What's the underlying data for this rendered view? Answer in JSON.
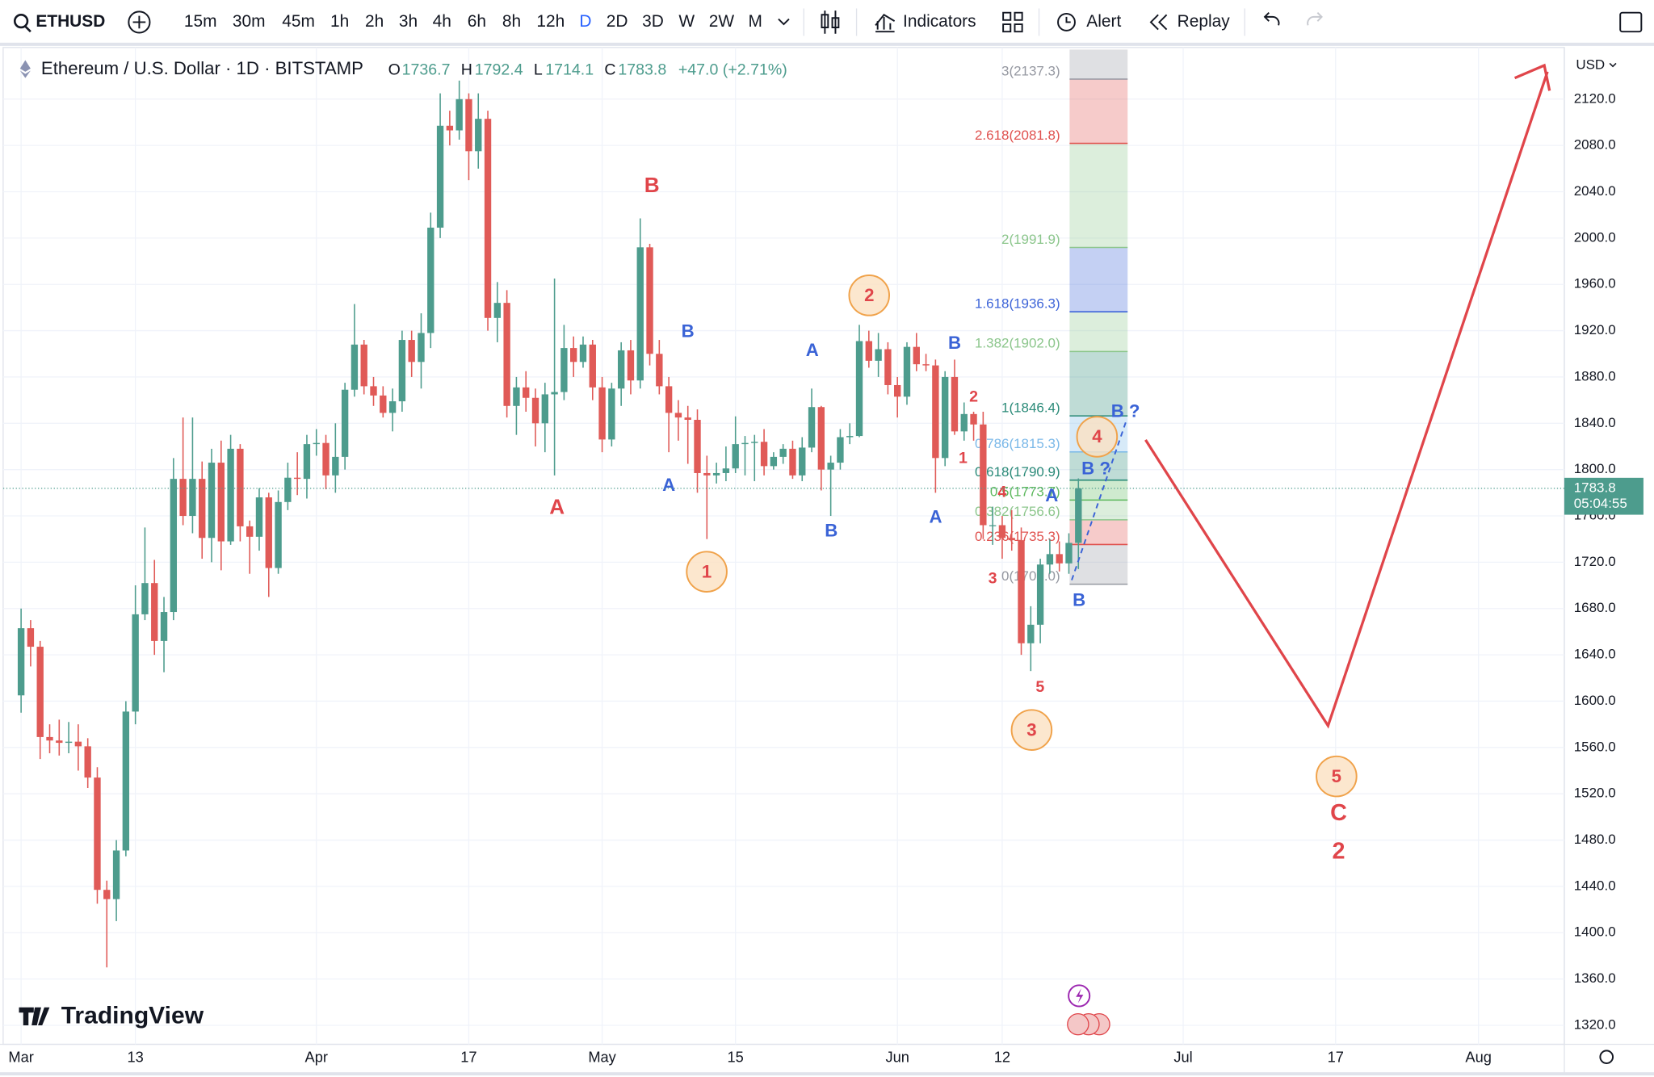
{
  "toolbar": {
    "symbol": "ETHUSD",
    "intervals": [
      "15m",
      "30m",
      "45m",
      "1h",
      "2h",
      "3h",
      "4h",
      "6h",
      "8h",
      "12h",
      "D",
      "2D",
      "3D",
      "W",
      "2W",
      "M"
    ],
    "active_interval": 10,
    "indicators": "Indicators",
    "alert": "Alert",
    "replay": "Replay"
  },
  "legend": {
    "title": "Ethereum / U.S. Dollar · 1D · BITSTAMP",
    "o": "O",
    "h": "H",
    "l": "L",
    "c": "C",
    "change": "+47.0 (+2.71%)"
  },
  "price_tag": {
    "timer": "05:04:55"
  },
  "currency": "USD",
  "logo": "TradingView",
  "chart_data": {
    "type": "candlestick",
    "up_color": "#4d9c8d",
    "down_color": "#e05a57",
    "grid": true,
    "x": [
      "03-01",
      "03-02",
      "03-03",
      "03-04",
      "03-05",
      "03-06",
      "03-07",
      "03-08",
      "03-09",
      "03-10",
      "03-11",
      "03-12",
      "03-13",
      "03-14",
      "03-15",
      "03-16",
      "03-17",
      "03-18",
      "03-19",
      "03-20",
      "03-21",
      "03-22",
      "03-23",
      "03-24",
      "03-25",
      "03-26",
      "03-27",
      "03-28",
      "03-29",
      "03-30",
      "03-31",
      "04-01",
      "04-02",
      "04-03",
      "04-04",
      "04-05",
      "04-06",
      "04-07",
      "04-08",
      "04-09",
      "04-10",
      "04-11",
      "04-12",
      "04-13",
      "04-14",
      "04-15",
      "04-16",
      "04-17",
      "04-18",
      "04-19",
      "04-20",
      "04-21",
      "04-22",
      "04-23",
      "04-24",
      "04-25",
      "04-26",
      "04-27",
      "04-28",
      "04-29",
      "04-30",
      "05-01",
      "05-02",
      "05-03",
      "05-04",
      "05-05",
      "05-06",
      "05-07",
      "05-08",
      "05-09",
      "05-10",
      "05-11",
      "05-12",
      "05-13",
      "05-14",
      "05-15",
      "05-16",
      "05-17",
      "05-18",
      "05-19",
      "05-20",
      "05-21",
      "05-22",
      "05-23",
      "05-24",
      "05-25",
      "05-26",
      "05-27",
      "05-28",
      "05-29",
      "05-30",
      "05-31",
      "06-01",
      "06-02",
      "06-03",
      "06-04",
      "06-05",
      "06-06",
      "06-07",
      "06-08",
      "06-09",
      "06-10",
      "06-11",
      "06-12",
      "06-13",
      "06-14",
      "06-15",
      "06-16",
      "06-17",
      "06-18",
      "06-19",
      "06-20"
    ],
    "open": [
      1605,
      1663,
      1647,
      1569,
      1566,
      1564,
      1565,
      1561,
      1534,
      1437,
      1429,
      1471,
      1591,
      1675,
      1702,
      1652,
      1677,
      1792,
      1760,
      1792,
      1741,
      1806,
      1738,
      1818,
      1751,
      1742,
      1776,
      1715,
      1772,
      1793,
      1792,
      1822,
      1823,
      1795,
      1811,
      1869,
      1908,
      1872,
      1864,
      1849,
      1859,
      1912,
      1893,
      1918,
      2009,
      2097,
      2093,
      2120,
      2075,
      2103,
      1931,
      1944,
      1855,
      1871,
      1862,
      1840,
      1865,
      1867,
      1905,
      1893,
      1908,
      1871,
      1826,
      1870,
      1903,
      1877,
      1992,
      1900,
      1872,
      1849,
      1845,
      1843,
      1797,
      1795,
      1797,
      1801,
      1822,
      1823,
      1824,
      1803,
      1811,
      1818,
      1795,
      1819,
      1854,
      1800,
      1806,
      1828,
      1829,
      1911,
      1894,
      1904,
      1873,
      1863,
      1906,
      1891,
      1890,
      1810,
      1880,
      1833,
      1848,
      1839,
      1752,
      1752,
      1741,
      1739,
      1650,
      1666,
      1718,
      1727,
      1719,
      1736.7
    ],
    "high": [
      1680,
      1670,
      1652,
      1580,
      1584,
      1582,
      1580,
      1568,
      1543,
      1445,
      1480,
      1600,
      1700,
      1750,
      1722,
      1690,
      1810,
      1845,
      1845,
      1807,
      1818,
      1825,
      1830,
      1822,
      1756,
      1784,
      1780,
      1782,
      1806,
      1815,
      1830,
      1835,
      1830,
      1840,
      1875,
      1943,
      1912,
      1880,
      1872,
      1870,
      1920,
      1920,
      1935,
      2022,
      2125,
      2110,
      2136,
      2125,
      2125,
      2110,
      1962,
      1955,
      1880,
      1885,
      1870,
      1875,
      1965,
      1925,
      1915,
      1915,
      1912,
      1880,
      1875,
      1910,
      1912,
      2017,
      1995,
      1912,
      1880,
      1860,
      1855,
      1852,
      1812,
      1806,
      1820,
      1846,
      1829,
      1830,
      1835,
      1815,
      1822,
      1825,
      1828,
      1870,
      1855,
      1812,
      1835,
      1840,
      1925,
      1920,
      1918,
      1910,
      1880,
      1910,
      1918,
      1900,
      1895,
      1885,
      1895,
      1858,
      1850,
      1850,
      1768,
      1760,
      1765,
      1750,
      1682,
      1723,
      1740,
      1738,
      1745,
      1792.4
    ],
    "low": [
      1590,
      1630,
      1550,
      1555,
      1553,
      1555,
      1540,
      1525,
      1425,
      1370,
      1410,
      1466,
      1580,
      1670,
      1640,
      1625,
      1670,
      1752,
      1745,
      1723,
      1720,
      1713,
      1735,
      1738,
      1710,
      1730,
      1690,
      1710,
      1765,
      1778,
      1775,
      1812,
      1783,
      1780,
      1800,
      1863,
      1865,
      1855,
      1845,
      1833,
      1850,
      1880,
      1870,
      1905,
      2000,
      2080,
      2085,
      2050,
      2060,
      1920,
      1910,
      1845,
      1830,
      1850,
      1820,
      1815,
      1795,
      1860,
      1880,
      1888,
      1860,
      1815,
      1820,
      1855,
      1865,
      1870,
      1890,
      1865,
      1815,
      1825,
      1805,
      1780,
      1740,
      1788,
      1790,
      1797,
      1795,
      1790,
      1795,
      1800,
      1805,
      1792,
      1790,
      1815,
      1782,
      1760,
      1800,
      1822,
      1828,
      1888,
      1880,
      1865,
      1845,
      1856,
      1885,
      1885,
      1780,
      1803,
      1830,
      1825,
      1825,
      1740,
      1735,
      1723,
      1730,
      1640,
      1626,
      1650,
      1710,
      1712,
      1710,
      1714.1
    ],
    "close": [
      1663,
      1647,
      1569,
      1566,
      1564,
      1565,
      1561,
      1534,
      1437,
      1429,
      1471,
      1591,
      1675,
      1702,
      1652,
      1677,
      1792,
      1760,
      1792,
      1741,
      1806,
      1738,
      1818,
      1751,
      1742,
      1776,
      1715,
      1772,
      1793,
      1792,
      1822,
      1823,
      1795,
      1811,
      1869,
      1908,
      1872,
      1864,
      1849,
      1859,
      1912,
      1893,
      1918,
      2009,
      2097,
      2093,
      2120,
      2075,
      2103,
      1931,
      1944,
      1855,
      1871,
      1862,
      1840,
      1865,
      1867,
      1905,
      1893,
      1908,
      1871,
      1826,
      1870,
      1903,
      1877,
      1992,
      1900,
      1872,
      1849,
      1845,
      1843,
      1797,
      1795,
      1797,
      1801,
      1822,
      1823,
      1824,
      1803,
      1811,
      1818,
      1795,
      1819,
      1854,
      1800,
      1806,
      1828,
      1829,
      1911,
      1894,
      1904,
      1873,
      1863,
      1906,
      1891,
      1890,
      1810,
      1880,
      1833,
      1848,
      1839,
      1752,
      1752,
      1741,
      1739,
      1650,
      1666,
      1718,
      1727,
      1719,
      1736.7,
      1783.8
    ],
    "ylim": [
      1303.6,
      2162.8
    ],
    "yticks": [
      {
        "value": 1320,
        "label": "1320.0"
      },
      {
        "value": 1360,
        "label": "1360.0"
      },
      {
        "value": 1400,
        "label": "1400.0"
      },
      {
        "value": 1440,
        "label": "1440.0"
      },
      {
        "value": 1480,
        "label": "1480.0"
      },
      {
        "value": 1520,
        "label": "1520.0"
      },
      {
        "value": 1560,
        "label": "1560.0"
      },
      {
        "value": 1600,
        "label": "1600.0"
      },
      {
        "value": 1640,
        "label": "1640.0"
      },
      {
        "value": 1680,
        "label": "1680.0"
      },
      {
        "value": 1720,
        "label": "1720.0"
      },
      {
        "value": 1760,
        "label": "1760.0"
      },
      {
        "value": 1800,
        "label": "1800.0"
      },
      {
        "value": 1840,
        "label": "1840.0"
      },
      {
        "value": 1880,
        "label": "1880.0"
      },
      {
        "value": 1920,
        "label": "1920.0"
      },
      {
        "value": 1960,
        "label": "1960.0"
      },
      {
        "value": 2000,
        "label": "2000.0"
      },
      {
        "value": 2040,
        "label": "2040.0"
      },
      {
        "value": 2080,
        "label": "2080.0"
      },
      {
        "value": 2120,
        "label": "2120.0"
      }
    ],
    "xticks": [
      {
        "value": "03-01",
        "label": "Mar"
      },
      {
        "value": "03-13",
        "label": "13"
      },
      {
        "value": "04-01",
        "label": "Apr"
      },
      {
        "value": "04-17",
        "label": "17"
      },
      {
        "value": "05-01",
        "label": "May"
      },
      {
        "value": "05-15",
        "label": "15"
      },
      {
        "value": "06-01",
        "label": "Jun"
      },
      {
        "value": "06-12",
        "label": "12"
      },
      {
        "value": "07-01",
        "label": "Jul"
      },
      {
        "value": "07-17",
        "label": "17"
      },
      {
        "value": "08-01",
        "label": "Aug"
      }
    ],
    "fib": [
      {
        "value": 2137.3,
        "label": "3(2137.3)",
        "color": "#9598a1"
      },
      {
        "value": 2081.8,
        "label": "2.618(2081.8)",
        "color": "#e0524f"
      },
      {
        "value": 1991.9,
        "label": "2(1991.9)",
        "color": "#8cc68c"
      },
      {
        "value": 1936.3,
        "label": "1.618(1936.3)",
        "color": "#3d64d8"
      },
      {
        "value": 1902.0,
        "label": "1.382(1902.0)",
        "color": "#8cc68c"
      },
      {
        "value": 1846.4,
        "label": "1(1846.4)",
        "color": "#2a8a78"
      },
      {
        "value": 1815.3,
        "label": "0.786(1815.3)",
        "color": "#7ab8e8"
      },
      {
        "value": 1790.9,
        "label": "0.618(1790.9)",
        "color": "#2a8a78"
      },
      {
        "value": 1773.7,
        "label": "0.5(1773.7)",
        "color": "#5cb85c"
      },
      {
        "value": 1756.6,
        "label": "0.382(1756.6)",
        "color": "#8cc68c"
      },
      {
        "value": 1735.3,
        "label": "0.236(1735.3)",
        "color": "#e0524f"
      },
      {
        "value": 1701.0,
        "label": "0(1701.0)",
        "color": "#9598a1"
      }
    ],
    "labels": [
      {
        "text": "B",
        "color": "#e0454a"
      },
      {
        "text": "A",
        "color": "#e0454a"
      },
      {
        "text": "B",
        "color": "#3a63d6"
      },
      {
        "text": "A",
        "color": "#3a63d6"
      },
      {
        "text": "A",
        "color": "#3a63d6"
      },
      {
        "text": "B",
        "color": "#3a63d6"
      },
      {
        "text": "B",
        "color": "#3a63d6"
      },
      {
        "text": "A",
        "color": "#3a63d6"
      },
      {
        "text": "A",
        "color": "#3a63d6"
      },
      {
        "text": "B",
        "color": "#3a63d6"
      },
      {
        "text": "B ?",
        "color": "#3a63d6"
      },
      {
        "text": "B ?",
        "color": "#3a63d6"
      },
      {
        "text": "2",
        "color": "#e0454a"
      },
      {
        "text": "1",
        "color": "#e0454a"
      },
      {
        "text": "4",
        "color": "#e0454a"
      },
      {
        "text": "3",
        "color": "#e0454a"
      },
      {
        "text": "5",
        "color": "#e0454a"
      },
      {
        "text": "C",
        "color": "#e0454a"
      },
      {
        "text": "2",
        "color": "#e0454a"
      }
    ],
    "waves": [
      "1",
      "2",
      "3",
      "4",
      "5"
    ]
  }
}
